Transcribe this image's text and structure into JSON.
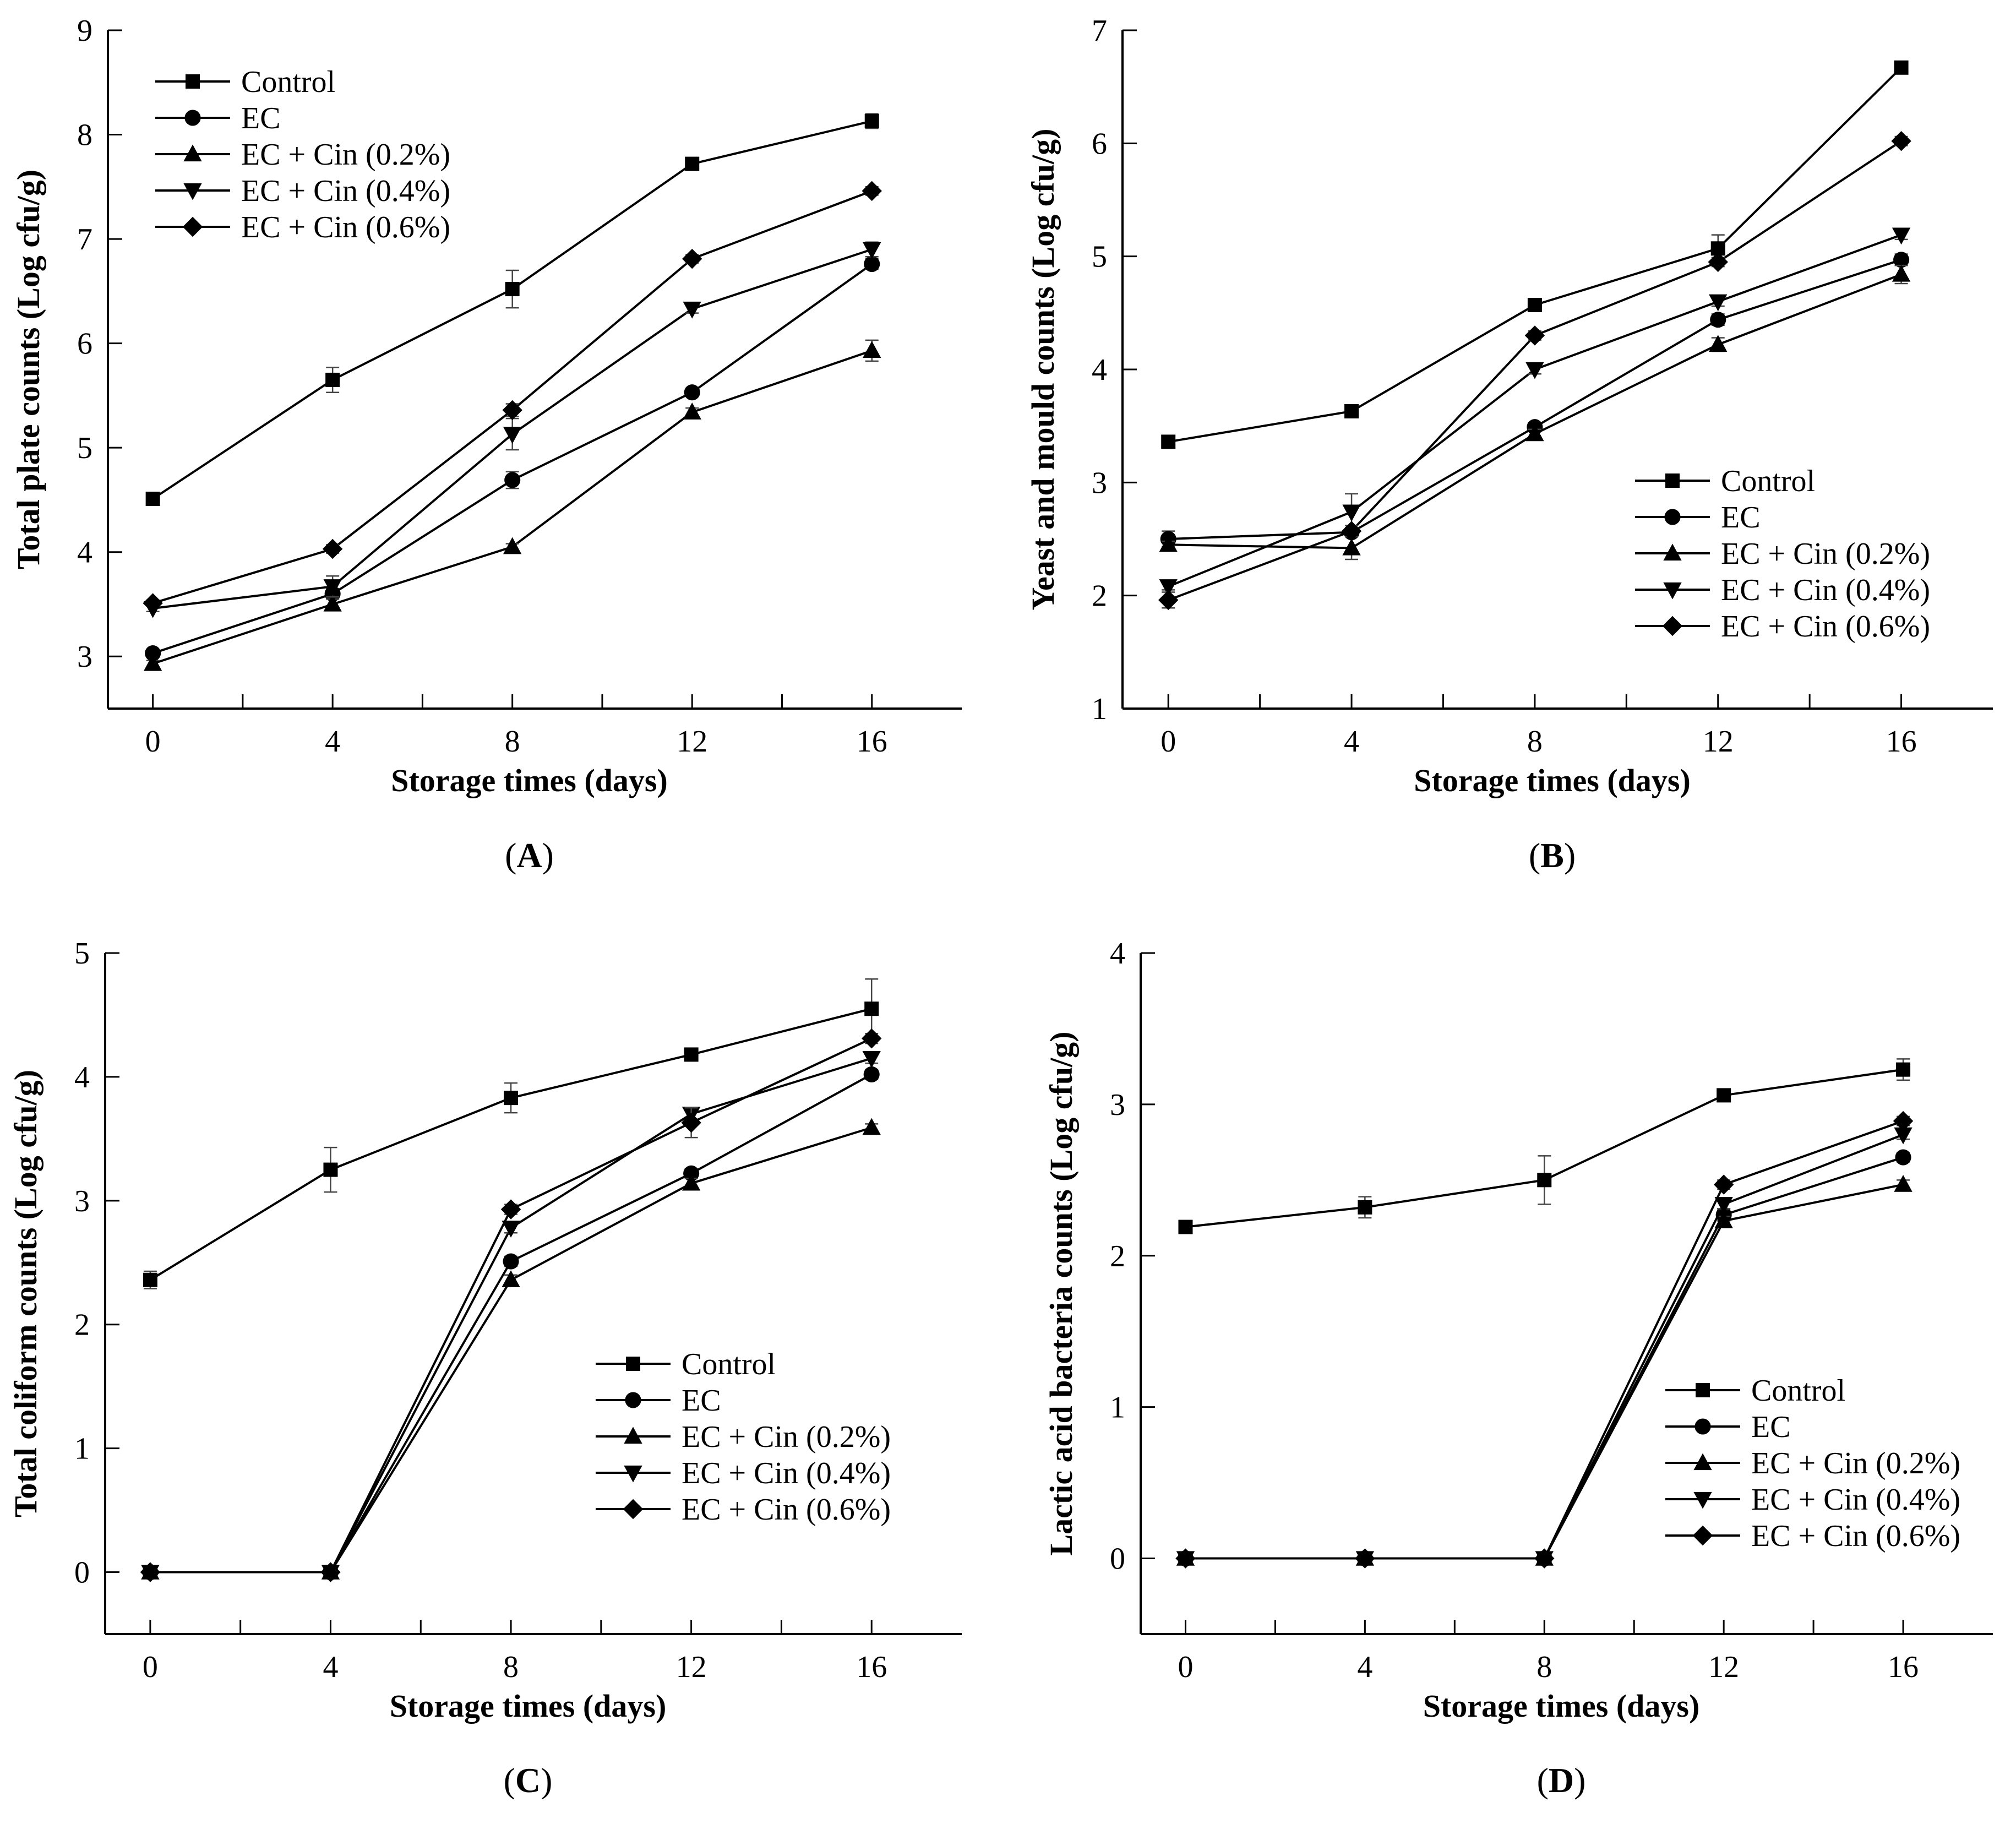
{
  "figure": {
    "series_styles": [
      {
        "name": "Control",
        "marker": "square"
      },
      {
        "name": "EC",
        "marker": "circle"
      },
      {
        "name": "EC + Cin (0.2%)",
        "marker": "triangle-up"
      },
      {
        "name": "EC + Cin (0.4%)",
        "marker": "triangle-down"
      },
      {
        "name": "EC + Cin (0.6%)",
        "marker": "diamond"
      }
    ],
    "line_color": "#000000",
    "background": "#ffffff"
  },
  "chart_data": [
    {
      "id": "A",
      "type": "line",
      "panel_label": "(A)",
      "panel_letter": "A",
      "xlabel": "Storage times (days)",
      "ylabel": "Total plate counts (Log cfu/g)",
      "x": [
        0,
        4,
        8,
        12,
        16
      ],
      "xticks": [
        0,
        4,
        8,
        12,
        16
      ],
      "xlim": [
        -1,
        18
      ],
      "yticks": [
        3,
        4,
        5,
        6,
        7,
        8,
        9
      ],
      "ylim": [
        2.5,
        9
      ],
      "legend_position": "top-left",
      "series": [
        {
          "name": "Control",
          "values": [
            4.51,
            5.65,
            6.52,
            7.72,
            8.13
          ],
          "err": [
            0.03,
            0.12,
            0.18,
            0.04,
            0.07
          ]
        },
        {
          "name": "EC",
          "values": [
            3.03,
            3.6,
            4.69,
            5.53,
            6.76
          ],
          "err": [
            0.03,
            0.05,
            0.08,
            0.04,
            0.05
          ]
        },
        {
          "name": "EC + Cin (0.2%)",
          "values": [
            2.93,
            3.5,
            4.05,
            5.34,
            5.93
          ],
          "err": [
            0.03,
            0.05,
            0.03,
            0.04,
            0.1
          ]
        },
        {
          "name": "EC + Cin (0.4%)",
          "values": [
            3.46,
            3.67,
            5.13,
            6.33,
            6.9
          ],
          "err": [
            0.03,
            0.1,
            0.15,
            0.04,
            0.07
          ]
        },
        {
          "name": "EC + Cin (0.6%)",
          "values": [
            3.51,
            4.03,
            5.36,
            6.81,
            7.46
          ],
          "err": [
            0.03,
            0.04,
            0.06,
            0.04,
            0.04
          ]
        }
      ]
    },
    {
      "id": "B",
      "type": "line",
      "panel_label": "(B)",
      "panel_letter": "B",
      "xlabel": "Storage times (days)",
      "ylabel": "Yeast and mould counts (Log cfu/g)",
      "x": [
        0,
        4,
        8,
        12,
        16
      ],
      "xticks": [
        0,
        4,
        8,
        12,
        16
      ],
      "xlim": [
        -1,
        18
      ],
      "yticks": [
        1,
        2,
        3,
        4,
        5,
        6,
        7
      ],
      "ylim": [
        1,
        7
      ],
      "legend_position": "bottom-right",
      "series": [
        {
          "name": "Control",
          "values": [
            3.36,
            3.63,
            4.57,
            5.07,
            6.67
          ],
          "err": [
            0.03,
            0.04,
            0.04,
            0.12,
            0.04
          ]
        },
        {
          "name": "EC",
          "values": [
            2.5,
            2.56,
            3.49,
            4.44,
            4.97
          ],
          "err": [
            0.07,
            0.04,
            0.04,
            0.05,
            0.05
          ]
        },
        {
          "name": "EC + Cin (0.2%)",
          "values": [
            2.45,
            2.42,
            3.43,
            4.22,
            4.84
          ],
          "err": [
            0.03,
            0.1,
            0.04,
            0.06,
            0.08
          ]
        },
        {
          "name": "EC + Cin (0.4%)",
          "values": [
            2.08,
            2.74,
            4.0,
            4.6,
            5.19
          ],
          "err": [
            0.03,
            0.16,
            0.04,
            0.04,
            0.04
          ]
        },
        {
          "name": "EC + Cin (0.6%)",
          "values": [
            1.96,
            2.57,
            4.3,
            4.95,
            6.02
          ],
          "err": [
            0.07,
            0.05,
            0.04,
            0.04,
            0.04
          ]
        }
      ]
    },
    {
      "id": "C",
      "type": "line",
      "panel_label": "(C)",
      "panel_letter": "C",
      "xlabel": "Storage times (days)",
      "ylabel": "Total coliform counts (Log cfu/g)",
      "x": [
        0,
        4,
        8,
        12,
        16
      ],
      "xticks": [
        0,
        4,
        8,
        12,
        16
      ],
      "xlim": [
        -1,
        18
      ],
      "yticks": [
        0,
        1,
        2,
        3,
        4,
        5
      ],
      "ylim": [
        -0.5,
        5
      ],
      "legend_position": "bottom-right",
      "series": [
        {
          "name": "Control",
          "values": [
            2.36,
            3.25,
            3.83,
            4.18,
            4.55
          ],
          "err": [
            0.07,
            0.18,
            0.12,
            0.03,
            0.24
          ]
        },
        {
          "name": "EC",
          "values": [
            0,
            0,
            2.51,
            3.22,
            4.02
          ],
          "err": [
            0,
            0,
            0.04,
            0.04,
            0.04
          ]
        },
        {
          "name": "EC + Cin (0.2%)",
          "values": [
            0,
            0,
            2.36,
            3.14,
            3.59
          ],
          "err": [
            0,
            0,
            0.04,
            0.04,
            0.03
          ]
        },
        {
          "name": "EC + Cin (0.4%)",
          "values": [
            0,
            0,
            2.78,
            3.7,
            4.15
          ],
          "err": [
            0,
            0,
            0.04,
            0.05,
            0.04
          ]
        },
        {
          "name": "EC + Cin (0.6%)",
          "values": [
            0,
            0,
            2.93,
            3.63,
            4.31
          ],
          "err": [
            0,
            0,
            0.04,
            0.12,
            0.04
          ]
        }
      ]
    },
    {
      "id": "D",
      "type": "line",
      "panel_label": "(D)",
      "panel_letter": "D",
      "xlabel": "Storage times (days)",
      "ylabel": "Lactic acid bacteria counts (Log cfu/g)",
      "x": [
        0,
        4,
        8,
        12,
        16
      ],
      "xticks": [
        0,
        4,
        8,
        12,
        16
      ],
      "xlim": [
        -1,
        18
      ],
      "yticks": [
        0,
        1,
        2,
        3,
        4
      ],
      "ylim": [
        -0.5,
        4
      ],
      "legend_position": "bottom-right",
      "series": [
        {
          "name": "Control",
          "values": [
            2.19,
            2.32,
            2.5,
            3.06,
            3.23
          ],
          "err": [
            0.02,
            0.07,
            0.16,
            0.02,
            0.07
          ]
        },
        {
          "name": "EC",
          "values": [
            0,
            0,
            0,
            2.27,
            2.65
          ],
          "err": [
            0,
            0,
            0,
            0.04,
            0.03
          ]
        },
        {
          "name": "EC + Cin (0.2%)",
          "values": [
            0,
            0,
            0,
            2.23,
            2.47
          ],
          "err": [
            0,
            0,
            0,
            0.03,
            0.03
          ]
        },
        {
          "name": "EC + Cin (0.4%)",
          "values": [
            0,
            0,
            0,
            2.34,
            2.8
          ],
          "err": [
            0,
            0,
            0,
            0.03,
            0.03
          ]
        },
        {
          "name": "EC + Cin (0.6%)",
          "values": [
            0,
            0,
            0,
            2.47,
            2.89
          ],
          "err": [
            0,
            0,
            0,
            0.03,
            0.03
          ]
        }
      ]
    }
  ]
}
